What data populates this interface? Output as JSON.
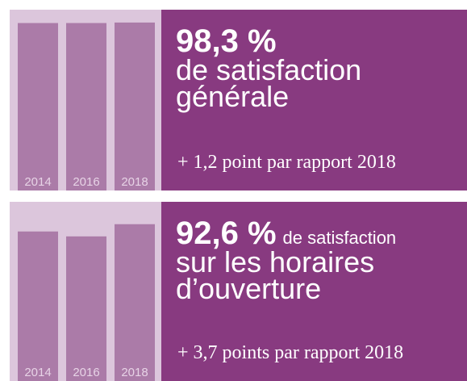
{
  "chart_data": [
    {
      "type": "bar",
      "categories": [
        "2014",
        "2016",
        "2018"
      ],
      "values": [
        98,
        98,
        98.3
      ],
      "ylim": [
        0,
        100
      ],
      "color": "#ab7ba8",
      "headline": "98,3 %",
      "headline_rest": null,
      "lines": [
        "de satisfaction",
        "générale"
      ],
      "note": "+ 1,2 point par rapport 2018"
    },
    {
      "type": "bar",
      "categories": [
        "2014",
        "2016",
        "2018"
      ],
      "values": [
        88.3,
        85.4,
        92.6
      ],
      "ylim": [
        0,
        100
      ],
      "color": "#ab7ba8",
      "headline": "92,6 %",
      "headline_rest": "de satisfaction",
      "lines": [
        "sur les horaires",
        "d’ouverture"
      ],
      "note": "+ 3,7 points par rapport 2018"
    }
  ]
}
